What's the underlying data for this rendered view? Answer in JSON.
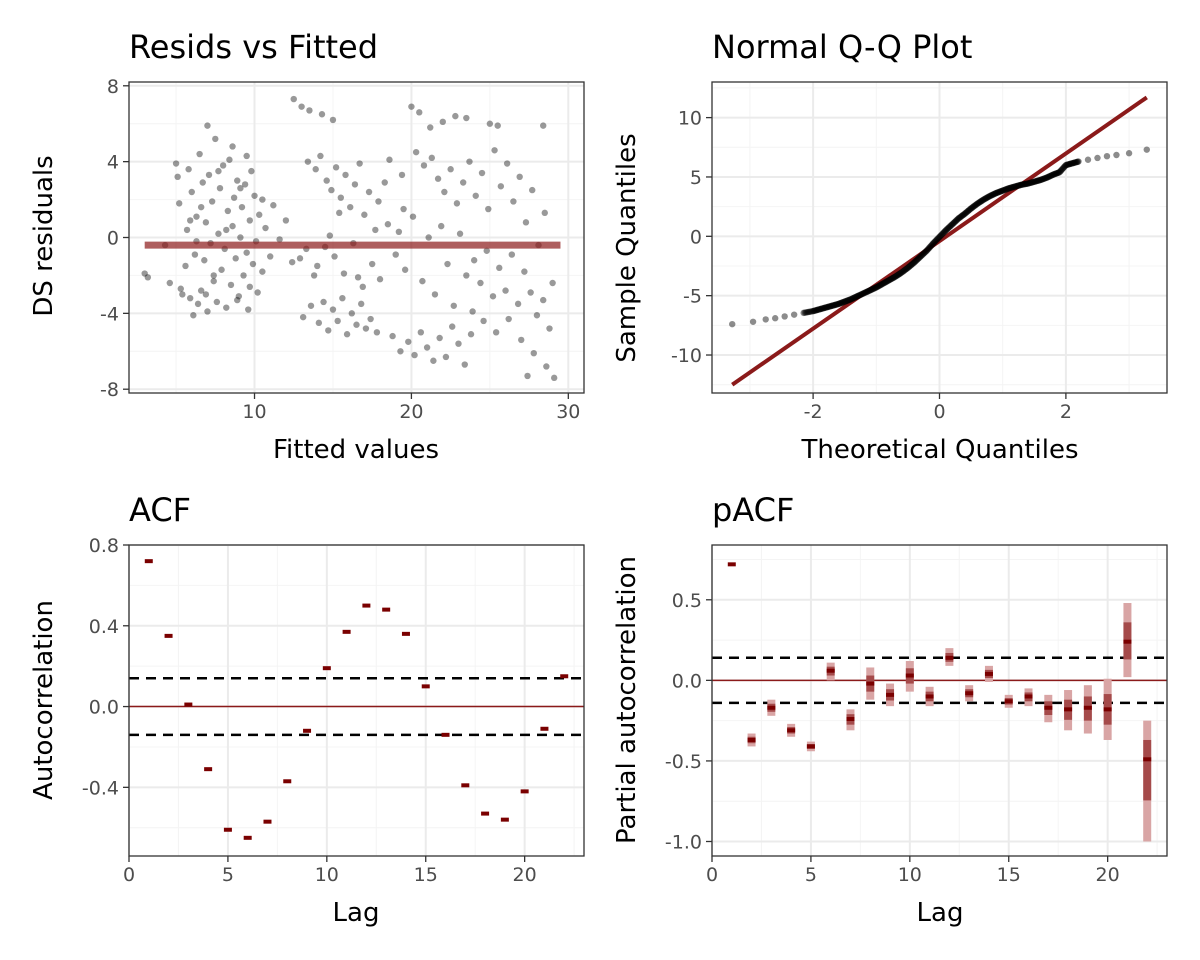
{
  "colors": {
    "points": "#000000",
    "fit_line": "#8b1a1a",
    "ci_line": "#000000",
    "bar_dark": "#7a0000",
    "bar_light": "#d9a5a5"
  },
  "chart_data": [
    {
      "id": "resids",
      "type": "scatter",
      "title": "Resids vs Fitted",
      "xlabel": "Fitted values",
      "ylabel": "DS residuals",
      "xlim": [
        2,
        31
      ],
      "ylim": [
        -8.2,
        8.2
      ],
      "xticks": [
        10,
        20,
        30
      ],
      "xtick_labels": [
        "10",
        "20",
        "30"
      ],
      "yticks": [
        -8,
        -4,
        0,
        4,
        8
      ],
      "ytick_labels": [
        "-8",
        "-4",
        "0",
        "4",
        "8"
      ],
      "fit_line": {
        "x": [
          3,
          29.5
        ],
        "y": [
          -0.4,
          -0.4
        ]
      },
      "points": [
        [
          3.2,
          -2.1
        ],
        [
          3.0,
          -1.9
        ],
        [
          4.3,
          -0.4
        ],
        [
          4.6,
          -2.4
        ],
        [
          5.0,
          3.9
        ],
        [
          5.1,
          3.2
        ],
        [
          5.2,
          1.8
        ],
        [
          5.3,
          -2.7
        ],
        [
          5.4,
          -3.0
        ],
        [
          5.6,
          -1.5
        ],
        [
          5.7,
          0.4
        ],
        [
          5.8,
          3.6
        ],
        [
          5.9,
          -3.2
        ],
        [
          6.0,
          2.4
        ],
        [
          6.1,
          -4.1
        ],
        [
          6.2,
          -0.9
        ],
        [
          6.3,
          1.1
        ],
        [
          6.4,
          -3.5
        ],
        [
          6.5,
          4.4
        ],
        [
          6.6,
          -2.8
        ],
        [
          6.7,
          2.9
        ],
        [
          6.8,
          -1.2
        ],
        [
          6.9,
          0.8
        ],
        [
          7.0,
          -3.9
        ],
        [
          7.1,
          3.3
        ],
        [
          7.2,
          -0.3
        ],
        [
          7.3,
          1.9
        ],
        [
          7.4,
          -2.3
        ],
        [
          7.5,
          5.2
        ],
        [
          7.6,
          -3.4
        ],
        [
          7.7,
          0.2
        ],
        [
          7.8,
          2.6
        ],
        [
          7.9,
          -1.7
        ],
        [
          8.0,
          3.8
        ],
        [
          8.1,
          -0.6
        ],
        [
          8.2,
          -3.7
        ],
        [
          8.3,
          1.4
        ],
        [
          8.4,
          4.1
        ],
        [
          8.5,
          -2.5
        ],
        [
          8.6,
          0.6
        ],
        [
          8.7,
          2.1
        ],
        [
          8.8,
          -1.1
        ],
        [
          8.9,
          3.0
        ],
        [
          9.0,
          -3.1
        ],
        [
          9.1,
          0.0
        ],
        [
          9.2,
          1.6
        ],
        [
          9.3,
          -2.0
        ],
        [
          9.4,
          2.8
        ],
        [
          9.5,
          -0.8
        ],
        [
          9.6,
          -3.8
        ],
        [
          9.7,
          0.9
        ],
        [
          9.8,
          3.5
        ],
        [
          9.9,
          -1.4
        ],
        [
          10.0,
          2.2
        ],
        [
          10.1,
          -0.2
        ],
        [
          10.2,
          -2.9
        ],
        [
          10.3,
          1.2
        ],
        [
          10.5,
          -1.8
        ],
        [
          10.7,
          0.5
        ],
        [
          11.0,
          -1.0
        ],
        [
          7.0,
          5.9
        ],
        [
          8.6,
          4.8
        ],
        [
          9.5,
          4.3
        ],
        [
          10.5,
          2.0
        ],
        [
          11.2,
          1.7
        ],
        [
          12.0,
          0.9
        ],
        [
          11.6,
          -0.1
        ],
        [
          12.4,
          -1.3
        ],
        [
          13.3,
          -0.6
        ],
        [
          14.0,
          -1.5
        ],
        [
          12.5,
          7.3
        ],
        [
          13.0,
          6.9
        ],
        [
          13.5,
          6.7
        ],
        [
          14.3,
          6.5
        ],
        [
          15.0,
          6.2
        ],
        [
          13.1,
          -4.2
        ],
        [
          13.6,
          -3.6
        ],
        [
          14.1,
          -4.5
        ],
        [
          14.4,
          -3.4
        ],
        [
          14.7,
          -4.9
        ],
        [
          15.0,
          -3.8
        ],
        [
          15.3,
          -4.4
        ],
        [
          15.6,
          -3.2
        ],
        [
          15.9,
          -5.1
        ],
        [
          16.2,
          -4.0
        ],
        [
          16.5,
          -4.6
        ],
        [
          16.8,
          -3.5
        ],
        [
          17.1,
          -4.8
        ],
        [
          17.4,
          -4.3
        ],
        [
          17.8,
          -5.0
        ],
        [
          13.4,
          4.0
        ],
        [
          13.9,
          3.6
        ],
        [
          14.2,
          4.3
        ],
        [
          14.6,
          3.0
        ],
        [
          14.9,
          2.5
        ],
        [
          15.2,
          3.7
        ],
        [
          15.5,
          2.1
        ],
        [
          15.8,
          3.3
        ],
        [
          16.1,
          1.6
        ],
        [
          16.4,
          2.8
        ],
        [
          16.7,
          3.9
        ],
        [
          17.0,
          1.2
        ],
        [
          17.3,
          2.4
        ],
        [
          17.7,
          0.4
        ],
        [
          14.5,
          -0.5
        ],
        [
          15.1,
          -1.0
        ],
        [
          15.7,
          -1.9
        ],
        [
          16.3,
          -0.3
        ],
        [
          16.9,
          -2.6
        ],
        [
          17.5,
          -1.4
        ],
        [
          18.0,
          -2.2
        ],
        [
          18.5,
          0.7
        ],
        [
          19.0,
          -0.9
        ],
        [
          19.5,
          1.5
        ],
        [
          18.3,
          2.9
        ],
        [
          18.8,
          -5.2
        ],
        [
          19.3,
          -6.0
        ],
        [
          19.8,
          -5.5
        ],
        [
          20.2,
          -6.2
        ],
        [
          20.6,
          -5.0
        ],
        [
          21.0,
          -5.8
        ],
        [
          21.4,
          -6.5
        ],
        [
          21.8,
          -5.3
        ],
        [
          22.2,
          -6.3
        ],
        [
          22.6,
          -4.7
        ],
        [
          23.0,
          -5.6
        ],
        [
          23.4,
          -6.7
        ],
        [
          23.8,
          -5.1
        ],
        [
          20.0,
          6.9
        ],
        [
          20.5,
          6.6
        ],
        [
          21.2,
          5.8
        ],
        [
          22.0,
          6.1
        ],
        [
          22.8,
          6.4
        ],
        [
          23.5,
          6.3
        ],
        [
          20.3,
          4.5
        ],
        [
          20.8,
          3.8
        ],
        [
          21.3,
          4.2
        ],
        [
          21.7,
          3.1
        ],
        [
          22.1,
          2.4
        ],
        [
          22.5,
          3.6
        ],
        [
          22.9,
          1.8
        ],
        [
          23.3,
          2.9
        ],
        [
          23.7,
          4.0
        ],
        [
          24.1,
          2.2
        ],
        [
          24.5,
          3.4
        ],
        [
          24.9,
          1.5
        ],
        [
          25.3,
          4.6
        ],
        [
          25.7,
          2.7
        ],
        [
          26.1,
          3.9
        ],
        [
          26.5,
          1.9
        ],
        [
          26.9,
          3.2
        ],
        [
          27.3,
          0.8
        ],
        [
          27.7,
          2.5
        ],
        [
          28.1,
          -0.4
        ],
        [
          28.5,
          1.3
        ],
        [
          24.0,
          -1.2
        ],
        [
          24.4,
          -2.4
        ],
        [
          24.8,
          -0.7
        ],
        [
          25.2,
          -3.1
        ],
        [
          25.6,
          -1.6
        ],
        [
          26.0,
          -2.8
        ],
        [
          26.4,
          -0.9
        ],
        [
          26.8,
          -3.5
        ],
        [
          27.2,
          -1.8
        ],
        [
          27.6,
          -2.9
        ],
        [
          28.0,
          -4.1
        ],
        [
          28.4,
          -3.3
        ],
        [
          28.8,
          -4.8
        ],
        [
          29.0,
          -2.4
        ],
        [
          24.6,
          -4.4
        ],
        [
          25.4,
          -5.0
        ],
        [
          26.2,
          -4.3
        ],
        [
          27.0,
          -5.4
        ],
        [
          27.8,
          -6.1
        ],
        [
          28.6,
          -6.8
        ],
        [
          29.1,
          -7.4
        ],
        [
          27.4,
          -7.3
        ],
        [
          25.0,
          6.0
        ],
        [
          25.5,
          5.9
        ],
        [
          28.4,
          5.9
        ],
        [
          19.2,
          0.3
        ],
        [
          19.6,
          -1.7
        ],
        [
          20.1,
          1.1
        ],
        [
          20.7,
          -2.3
        ],
        [
          21.1,
          0.0
        ],
        [
          21.5,
          -3.0
        ],
        [
          21.9,
          0.6
        ],
        [
          22.3,
          -1.4
        ],
        [
          22.7,
          -3.6
        ],
        [
          23.1,
          0.2
        ],
        [
          23.5,
          -2.0
        ],
        [
          23.9,
          -3.9
        ],
        [
          18.6,
          4.1
        ],
        [
          19.4,
          3.3
        ],
        [
          17.9,
          1.9
        ],
        [
          16.6,
          -2.1
        ],
        [
          15.4,
          1.3
        ],
        [
          14.8,
          0.1
        ],
        [
          13.8,
          -2.0
        ],
        [
          12.9,
          -1.1
        ],
        [
          6.3,
          -0.2
        ],
        [
          7.4,
          -2.0
        ],
        [
          8.2,
          0.4
        ],
        [
          9.1,
          2.6
        ],
        [
          8.9,
          -3.3
        ],
        [
          7.7,
          3.5
        ],
        [
          6.9,
          -3.0
        ],
        [
          5.9,
          0.9
        ],
        [
          6.6,
          1.6
        ],
        [
          9.7,
          -2.6
        ]
      ]
    },
    {
      "id": "qq",
      "type": "scatter",
      "title": "Normal Q-Q Plot",
      "xlabel": "Theoretical Quantiles",
      "ylabel": "Sample Quantiles",
      "xlim": [
        -3.6,
        3.6
      ],
      "ylim": [
        -13.2,
        13.0
      ],
      "xticks": [
        -2,
        0,
        2
      ],
      "xtick_labels": [
        "-2",
        "0",
        "2"
      ],
      "yticks": [
        -10,
        -5,
        0,
        5,
        10
      ],
      "ytick_labels": [
        "-10",
        "-5",
        "0",
        "5",
        "10"
      ],
      "ref_line": {
        "x": [
          -3.28,
          3.28
        ],
        "y": [
          -12.5,
          11.7
        ]
      },
      "points": [
        [
          -3.28,
          -7.4
        ],
        [
          -2.95,
          -7.2
        ],
        [
          -2.75,
          -7.0
        ],
        [
          -2.6,
          -6.9
        ],
        [
          -2.45,
          -6.75
        ],
        [
          -2.3,
          -6.6
        ],
        [
          -2.15,
          -6.45
        ],
        [
          -2.0,
          -6.3
        ],
        [
          -1.9,
          -6.15
        ],
        [
          -1.8,
          -6.0
        ],
        [
          -1.7,
          -5.85
        ],
        [
          -1.6,
          -5.7
        ],
        [
          -1.5,
          -5.5
        ],
        [
          -1.4,
          -5.3
        ],
        [
          -1.3,
          -5.05
        ],
        [
          -1.2,
          -4.8
        ],
        [
          -1.1,
          -4.55
        ],
        [
          -1.0,
          -4.3
        ],
        [
          -0.9,
          -4.0
        ],
        [
          -0.8,
          -3.7
        ],
        [
          -0.7,
          -3.4
        ],
        [
          -0.6,
          -3.05
        ],
        [
          -0.5,
          -2.65
        ],
        [
          -0.4,
          -2.2
        ],
        [
          -0.3,
          -1.7
        ],
        [
          -0.2,
          -1.2
        ],
        [
          -0.1,
          -0.6
        ],
        [
          0.0,
          -0.05
        ],
        [
          0.1,
          0.5
        ],
        [
          0.2,
          1.0
        ],
        [
          0.3,
          1.5
        ],
        [
          0.4,
          1.9
        ],
        [
          0.5,
          2.35
        ],
        [
          0.6,
          2.75
        ],
        [
          0.7,
          3.1
        ],
        [
          0.8,
          3.4
        ],
        [
          0.9,
          3.65
        ],
        [
          1.0,
          3.85
        ],
        [
          1.1,
          4.05
        ],
        [
          1.2,
          4.2
        ],
        [
          1.3,
          4.35
        ],
        [
          1.4,
          4.45
        ],
        [
          1.5,
          4.6
        ],
        [
          1.6,
          4.75
        ],
        [
          1.7,
          4.95
        ],
        [
          1.8,
          5.2
        ],
        [
          1.9,
          5.4
        ],
        [
          2.0,
          6.0
        ],
        [
          2.1,
          6.15
        ],
        [
          2.2,
          6.3
        ],
        [
          2.35,
          6.45
        ],
        [
          2.5,
          6.6
        ],
        [
          2.65,
          6.75
        ],
        [
          2.8,
          6.85
        ],
        [
          3.0,
          7.0
        ],
        [
          3.28,
          7.3
        ]
      ]
    },
    {
      "id": "acf",
      "type": "bar",
      "title": "ACF",
      "xlabel": "Lag",
      "ylabel": "Autocorrelation",
      "xlim": [
        0,
        23
      ],
      "ylim": [
        -0.74,
        0.8
      ],
      "xticks": [
        0,
        5,
        10,
        15,
        20
      ],
      "xtick_labels": [
        "0",
        "5",
        "10",
        "15",
        "20"
      ],
      "yticks": [
        -0.4,
        0.0,
        0.4,
        0.8
      ],
      "ytick_labels": [
        "-0.4",
        "0.0",
        "0.4",
        "0.8"
      ],
      "ci": 0.14,
      "lags": [
        1,
        2,
        3,
        4,
        5,
        6,
        7,
        8,
        9,
        10,
        11,
        12,
        13,
        14,
        15,
        16,
        17,
        18,
        19,
        20,
        21,
        22
      ],
      "values": [
        0.72,
        0.35,
        0.01,
        -0.31,
        -0.61,
        -0.65,
        -0.57,
        -0.37,
        -0.12,
        0.19,
        0.37,
        0.5,
        0.48,
        0.36,
        0.1,
        -0.14,
        -0.39,
        -0.53,
        -0.56,
        -0.42,
        -0.11,
        0.15
      ],
      "lower": [
        0.72,
        0.35,
        0.01,
        -0.31,
        -0.61,
        -0.65,
        -0.57,
        -0.37,
        -0.12,
        0.19,
        0.37,
        0.5,
        0.48,
        0.36,
        0.1,
        -0.14,
        -0.39,
        -0.53,
        -0.56,
        -0.42,
        -0.11,
        0.15
      ],
      "upper": [
        0.72,
        0.35,
        0.01,
        -0.31,
        -0.61,
        -0.65,
        -0.57,
        -0.37,
        -0.12,
        0.19,
        0.37,
        0.5,
        0.48,
        0.36,
        0.1,
        -0.14,
        -0.39,
        -0.53,
        -0.56,
        -0.42,
        -0.11,
        0.15
      ]
    },
    {
      "id": "pacf",
      "type": "bar",
      "title": "pACF",
      "xlabel": "Lag",
      "ylabel": "Partial autocorrelation",
      "xlim": [
        0,
        23
      ],
      "ylim": [
        -1.09,
        0.84
      ],
      "xticks": [
        0,
        5,
        10,
        15,
        20
      ],
      "xtick_labels": [
        "0",
        "5",
        "10",
        "15",
        "20"
      ],
      "yticks": [
        -1.0,
        -0.5,
        0.0,
        0.5
      ],
      "ytick_labels": [
        "-1.0",
        "-0.5",
        "0.0",
        "0.5"
      ],
      "ci": 0.14,
      "lags": [
        1,
        2,
        3,
        4,
        5,
        6,
        7,
        8,
        9,
        10,
        11,
        12,
        13,
        14,
        15,
        16,
        17,
        18,
        19,
        20,
        21,
        22
      ],
      "values": [
        0.72,
        -0.37,
        -0.17,
        -0.31,
        -0.41,
        0.06,
        -0.24,
        -0.02,
        -0.09,
        0.03,
        -0.1,
        0.14,
        -0.08,
        0.04,
        -0.13,
        -0.1,
        -0.17,
        -0.18,
        -0.17,
        -0.18,
        0.24,
        -0.49
      ],
      "lower": [
        0.72,
        -0.41,
        -0.22,
        -0.35,
        -0.44,
        0.0,
        -0.31,
        -0.12,
        -0.16,
        -0.07,
        -0.16,
        0.09,
        -0.13,
        -0.01,
        -0.17,
        -0.16,
        -0.26,
        -0.31,
        -0.33,
        -0.37,
        0.02,
        -1.0
      ],
      "upper": [
        0.72,
        -0.33,
        -0.12,
        -0.27,
        -0.38,
        0.11,
        -0.18,
        0.08,
        -0.02,
        0.12,
        -0.04,
        0.2,
        -0.03,
        0.09,
        -0.09,
        -0.05,
        -0.09,
        -0.06,
        -0.03,
        0.01,
        0.48,
        -0.25
      ]
    }
  ]
}
